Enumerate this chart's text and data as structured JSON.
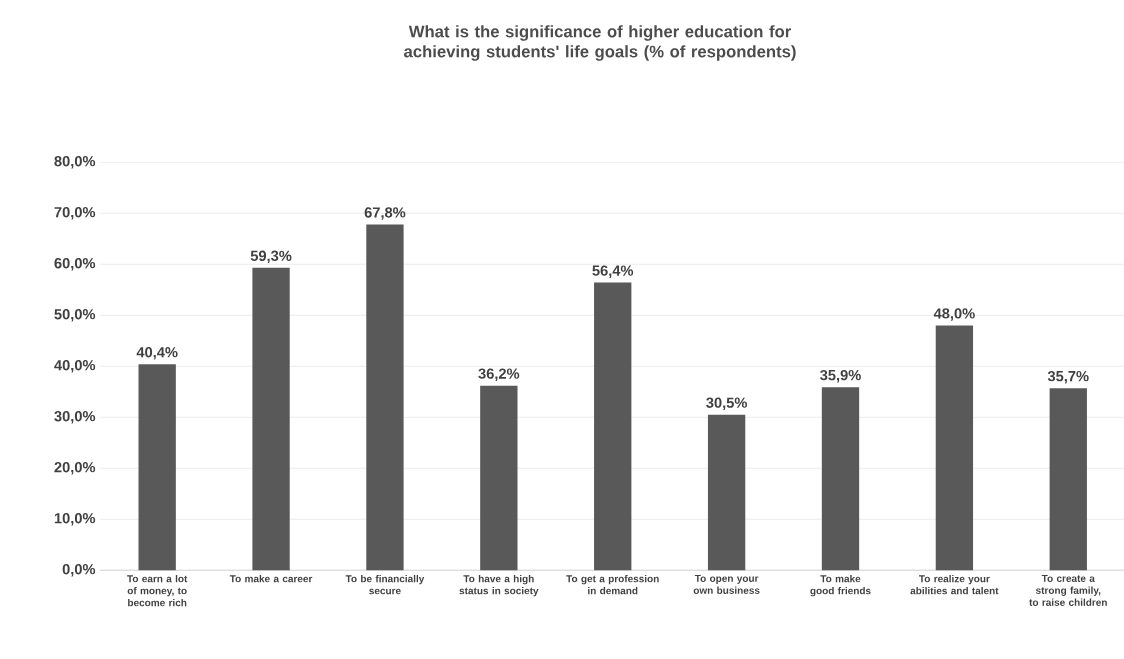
{
  "chart_data": {
    "type": "bar",
    "title": "What is the significance of higher education for achieving students' life goals (% of respondents)",
    "categories": [
      "To earn a lot of money, to become rich",
      "To make a career",
      "To be financially secure",
      "To have a high status in society",
      "To get a profession in demand",
      "To open your own business",
      "To make good friends",
      "To realize your abilities and talent",
      "To create a strong family, to raise children"
    ],
    "values": [
      40.4,
      59.3,
      67.8,
      36.2,
      56.4,
      30.5,
      35.9,
      48.0,
      35.7
    ],
    "value_labels": [
      "40,4%",
      "59,3%",
      "67,8%",
      "36,2%",
      "56,4%",
      "30,5%",
      "35,9%",
      "48,0%",
      "35,7%"
    ],
    "color": "#595959",
    "ylim": [
      0,
      80
    ],
    "yticks": [
      {
        "value": 0,
        "label": "0,0%"
      },
      {
        "value": 10,
        "label": "10,0%"
      },
      {
        "value": 20,
        "label": "20,0%"
      },
      {
        "value": 30,
        "label": "30,0%"
      },
      {
        "value": 40,
        "label": "40,0%"
      },
      {
        "value": 50,
        "label": "50,0%"
      },
      {
        "value": 60,
        "label": "60,0%"
      },
      {
        "value": 70,
        "label": "70,0%"
      },
      {
        "value": 80,
        "label": "80,0%"
      }
    ],
    "grid": "y"
  }
}
